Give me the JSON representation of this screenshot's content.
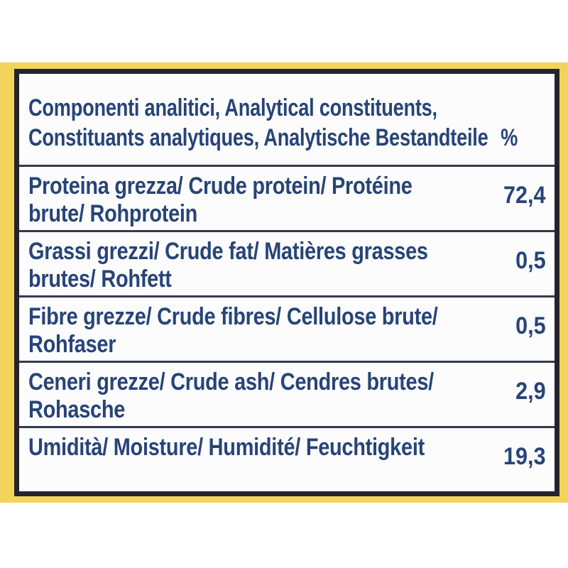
{
  "colors": {
    "background": "#ffffff",
    "band": "#f2d45c",
    "border": "#25232b",
    "divider": "#333a4c",
    "text": "#274478",
    "cell_bg": "#fcfcfd"
  },
  "table": {
    "header": {
      "lines": [
        "Componenti analitici, Analytical constituents,",
        "Constituants analytiques, Analytische Bestandteile"
      ],
      "unit": "%"
    },
    "rows": [
      {
        "label_lines": [
          "Proteina grezza/ Crude protein/ Protéine",
          "brute/ Rohprotein"
        ],
        "value": "72,4"
      },
      {
        "label_lines": [
          "Grassi grezzi/ Crude fat/ Matières grasses",
          "brutes/ Rohfett"
        ],
        "value": "0,5"
      },
      {
        "label_lines": [
          "Fibre grezze/ Crude fibres/ Cellulose brute/",
          "Rohfaser"
        ],
        "value": "0,5"
      },
      {
        "label_lines": [
          "Ceneri grezze/ Crude ash/ Cendres brutes/",
          "Rohasche"
        ],
        "value": "2,9"
      },
      {
        "label_lines": [
          "Umidità/ Moisture/ Humidité/ Feuchtigkeit"
        ],
        "value": "19,3"
      }
    ]
  }
}
